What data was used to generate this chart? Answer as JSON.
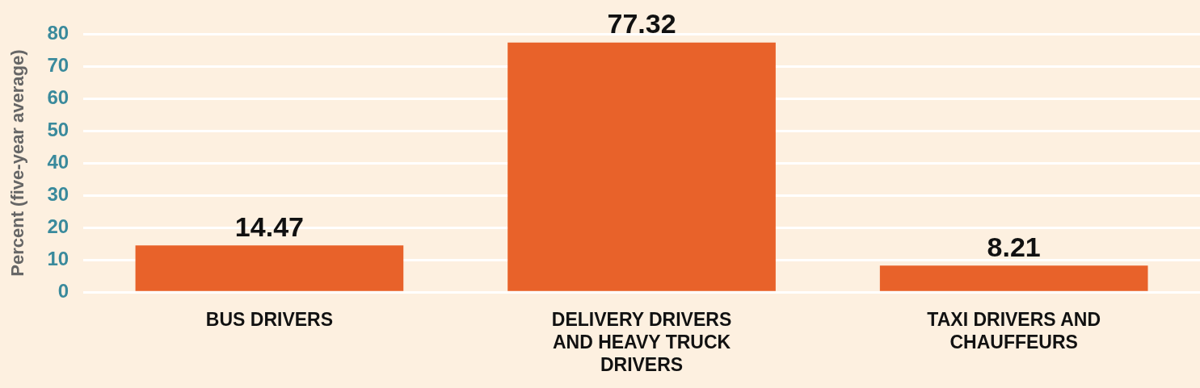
{
  "chart_data": {
    "type": "bar",
    "categories": [
      "BUS DRIVERS",
      "DELIVERY DRIVERS AND HEAVY TRUCK DRIVERS",
      "TAXI DRIVERS AND CHAUFFEURS"
    ],
    "values": [
      14.47,
      77.32,
      8.21
    ],
    "color": "#e8622a",
    "ylabel": "Percent (five-year average)",
    "ylim": [
      0,
      80
    ],
    "yticks": [
      0,
      10,
      20,
      30,
      40,
      50,
      60,
      70,
      80
    ],
    "grid": "y",
    "data_labels": true,
    "legend": false
  }
}
